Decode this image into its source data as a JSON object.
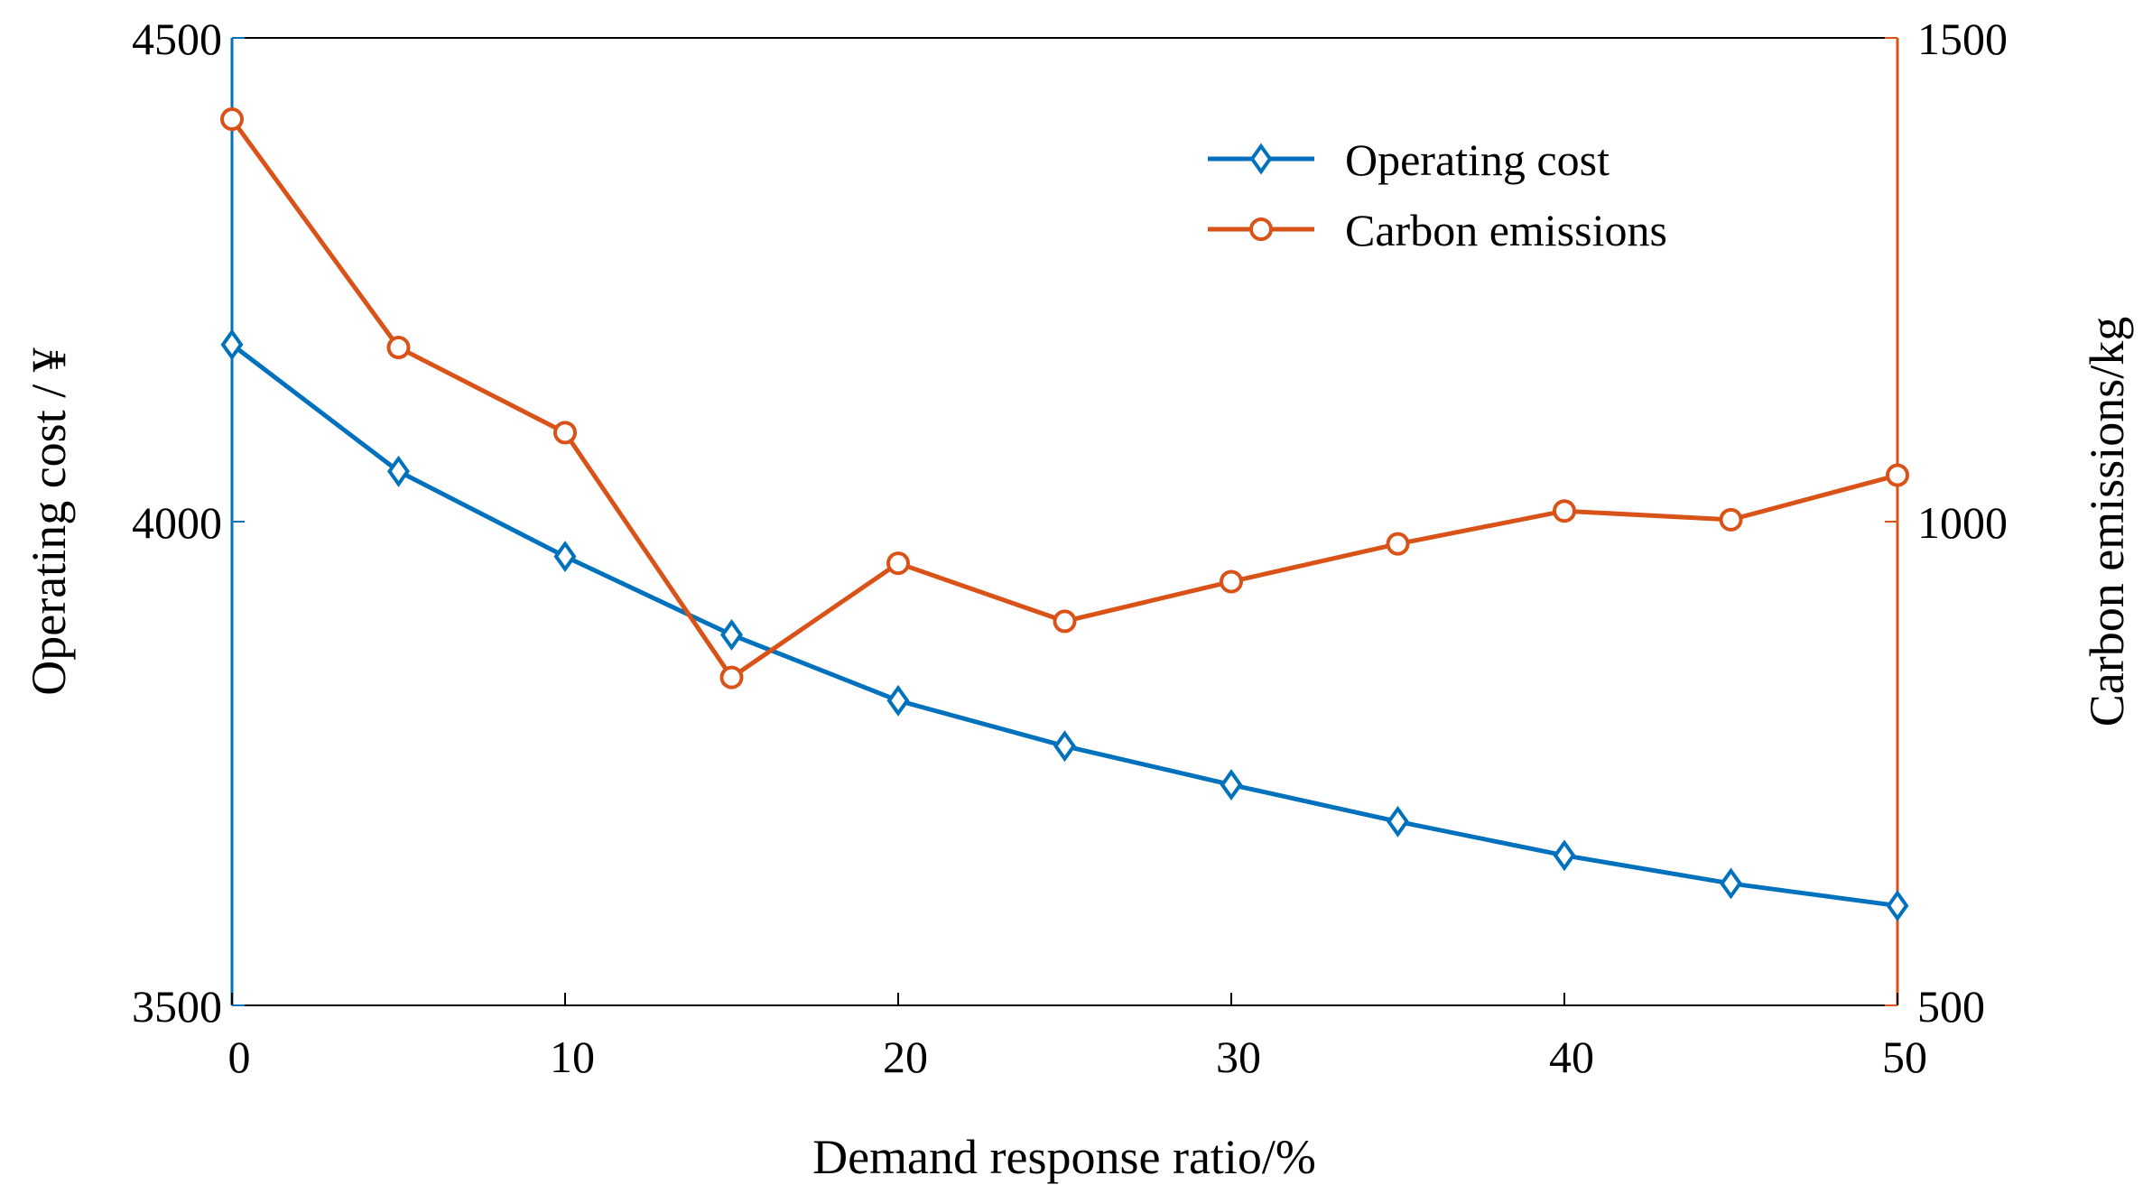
{
  "chart_data": {
    "type": "line",
    "x": [
      0,
      5,
      10,
      15,
      20,
      25,
      30,
      35,
      40,
      45,
      50
    ],
    "xlabel": "Demand response ratio/%",
    "xlim": [
      0,
      50
    ],
    "xticks": [
      "0",
      "10",
      "20",
      "30",
      "40",
      "50"
    ],
    "xtick_values": [
      0,
      10,
      20,
      30,
      40,
      50
    ],
    "ylabel_left": "Operating cost / ¥",
    "ylim_left": [
      3500,
      4500
    ],
    "yticks_left": [
      "3500",
      "4000",
      "4500"
    ],
    "ytick_values_left": [
      3500,
      4000,
      4500
    ],
    "ylabel_right": "Carbon emissions/kg",
    "ylim_right": [
      500,
      1500
    ],
    "yticks_right": [
      "500",
      "1000",
      "1500"
    ],
    "ytick_values_right": [
      500,
      1000,
      1500
    ],
    "grid": false,
    "legend_position": "top-right",
    "series": [
      {
        "name": "Operating cost",
        "axis": "left",
        "marker": "diamond",
        "color": "#0072BD",
        "values": [
          4183,
          4052,
          3964,
          3883,
          3815,
          3768,
          3728,
          3690,
          3655,
          3626,
          3603
        ]
      },
      {
        "name": "Carbon emissions",
        "axis": "right",
        "marker": "circle",
        "color": "#D95319",
        "values": [
          1416,
          1180,
          1092,
          839,
          957,
          897,
          938,
          977,
          1011,
          1002,
          1048
        ]
      }
    ],
    "axis_colors": {
      "left": "#0072BD",
      "right": "#D95319"
    }
  }
}
